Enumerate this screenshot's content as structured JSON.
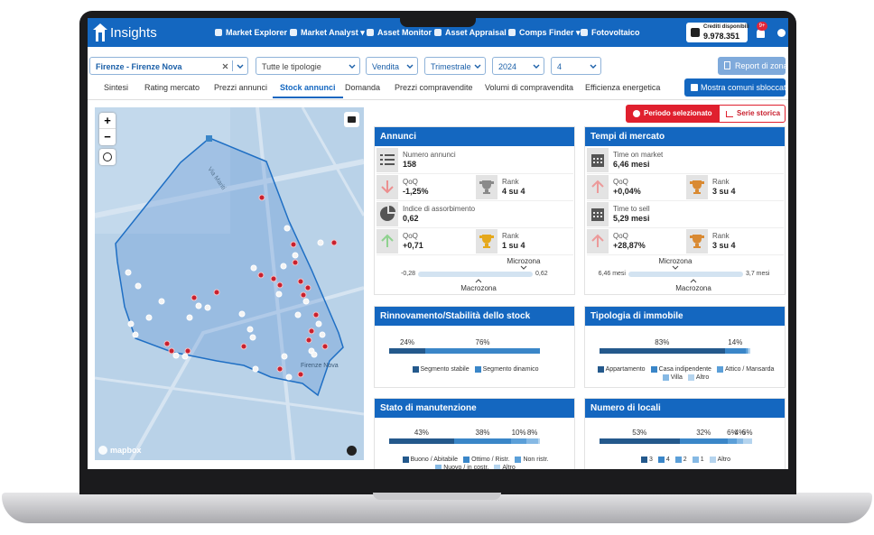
{
  "nav": {
    "brand": "Insights",
    "items": [
      "Market Explorer",
      "Market Analyst ▾",
      "Asset Monitor",
      "Asset Appraisal",
      "Comps Finder ▾",
      "Fotovoltaico"
    ],
    "credits_label": "Crediti disponibili",
    "credits_value": "9.978.351",
    "badge": "9+"
  },
  "filters": {
    "zone": "Firenze - Firenze Nova",
    "typology": "Tutte le tipologie",
    "contract": "Vendita",
    "period": "Trimestrale",
    "year": "2024",
    "quarter": "4",
    "report_button": "Report di zona"
  },
  "tabs": {
    "items": [
      "Sintesi",
      "Rating mercato",
      "Prezzi annunci",
      "Stock annunci",
      "Domanda",
      "Prezzi compravendite",
      "Volumi di compravendita",
      "Efficienza energetica"
    ],
    "active": 3,
    "button": "Mostra comuni sbloccati"
  },
  "map": {
    "zoom_in": "+",
    "zoom_out": "−",
    "labels": [
      "Via Mariti",
      "Firenze Nova"
    ],
    "attribution": "mapbox"
  },
  "toggle": {
    "selected": "Periodo selezionato",
    "history": "Serie storica"
  },
  "kpi_panels": [
    {
      "title": "Annunci",
      "main1": {
        "label": "Numero annunci",
        "value": "158"
      },
      "qoq1": {
        "label": "QoQ",
        "value": "-1,25%"
      },
      "rank1": {
        "label": "Rank",
        "value": "4 su 4"
      },
      "main2": {
        "label": "Indice di assorbimento",
        "value": "0,62"
      },
      "qoq2": {
        "label": "QoQ",
        "value": "+0,71"
      },
      "rank2": {
        "label": "Rank",
        "value": "1 su 4"
      },
      "scale": {
        "top": "Microzona",
        "left": "-0,28",
        "right": "0,62",
        "bottom": "Macrozona"
      }
    },
    {
      "title": "Tempi di mercato",
      "main1": {
        "label": "Time on market",
        "value": "6,46 mesi"
      },
      "qoq1": {
        "label": "QoQ",
        "value": "+0,04%"
      },
      "rank1": {
        "label": "Rank",
        "value": "3 su 4"
      },
      "main2": {
        "label": "Time to sell",
        "value": "5,29 mesi"
      },
      "qoq2": {
        "label": "QoQ",
        "value": "+28,87%"
      },
      "rank2": {
        "label": "Rank",
        "value": "3 su 4"
      },
      "scale": {
        "top": "Microzona",
        "left": "6,46 mesi",
        "right": "3,7 mesi",
        "bottom": "Macrozona"
      }
    }
  ],
  "bar_panels": [
    {
      "title": "Rinnovamento/Stabilità dello stock",
      "segments": [
        {
          "name": "Segmento stabile",
          "value": 24,
          "label": "24%",
          "color": "#24598c"
        },
        {
          "name": "Segmento dinamico",
          "value": 76,
          "label": "76%",
          "color": "#3a86c8"
        }
      ]
    },
    {
      "title": "Tipologia di immobile",
      "segments": [
        {
          "name": "Appartamento",
          "value": 83,
          "label": "83%",
          "color": "#24598c"
        },
        {
          "name": "Casa indipendente",
          "value": 14,
          "label": "14%",
          "color": "#3a86c8"
        },
        {
          "name": "Attico / Mansarda",
          "value": 1,
          "color": "#5b9fd8"
        },
        {
          "name": "Villa",
          "value": 1,
          "color": "#86b9e4"
        },
        {
          "name": "Altro",
          "value": 1,
          "color": "#b5d4ee"
        }
      ]
    },
    {
      "title": "Stato di manutenzione",
      "segments": [
        {
          "name": "Buono / Abitabile",
          "value": 43,
          "label": "43%",
          "color": "#24598c"
        },
        {
          "name": "Ottimo / Ristr.",
          "value": 38,
          "label": "38%",
          "color": "#3a86c8"
        },
        {
          "name": "Non ristr.",
          "value": 10,
          "label": "10%",
          "color": "#5b9fd8"
        },
        {
          "name": "Nuovo / in costr.",
          "value": 8,
          "label": "8%",
          "color": "#86b9e4"
        },
        {
          "name": "Altro",
          "value": 1,
          "color": "#b5d4ee"
        }
      ]
    },
    {
      "title": "Numero di locali",
      "segments": [
        {
          "name": "3",
          "value": 53,
          "label": "53%",
          "color": "#24598c"
        },
        {
          "name": "4",
          "value": 32,
          "label": "32%",
          "color": "#3a86c8"
        },
        {
          "name": "2",
          "value": 6,
          "label": "6%",
          "color": "#5b9fd8"
        },
        {
          "name": "1",
          "value": 4,
          "label": "4%",
          "color": "#86b9e4"
        },
        {
          "name": "Altro",
          "value": 6,
          "label": "6%",
          "color": "#b5d4ee"
        }
      ]
    }
  ]
}
